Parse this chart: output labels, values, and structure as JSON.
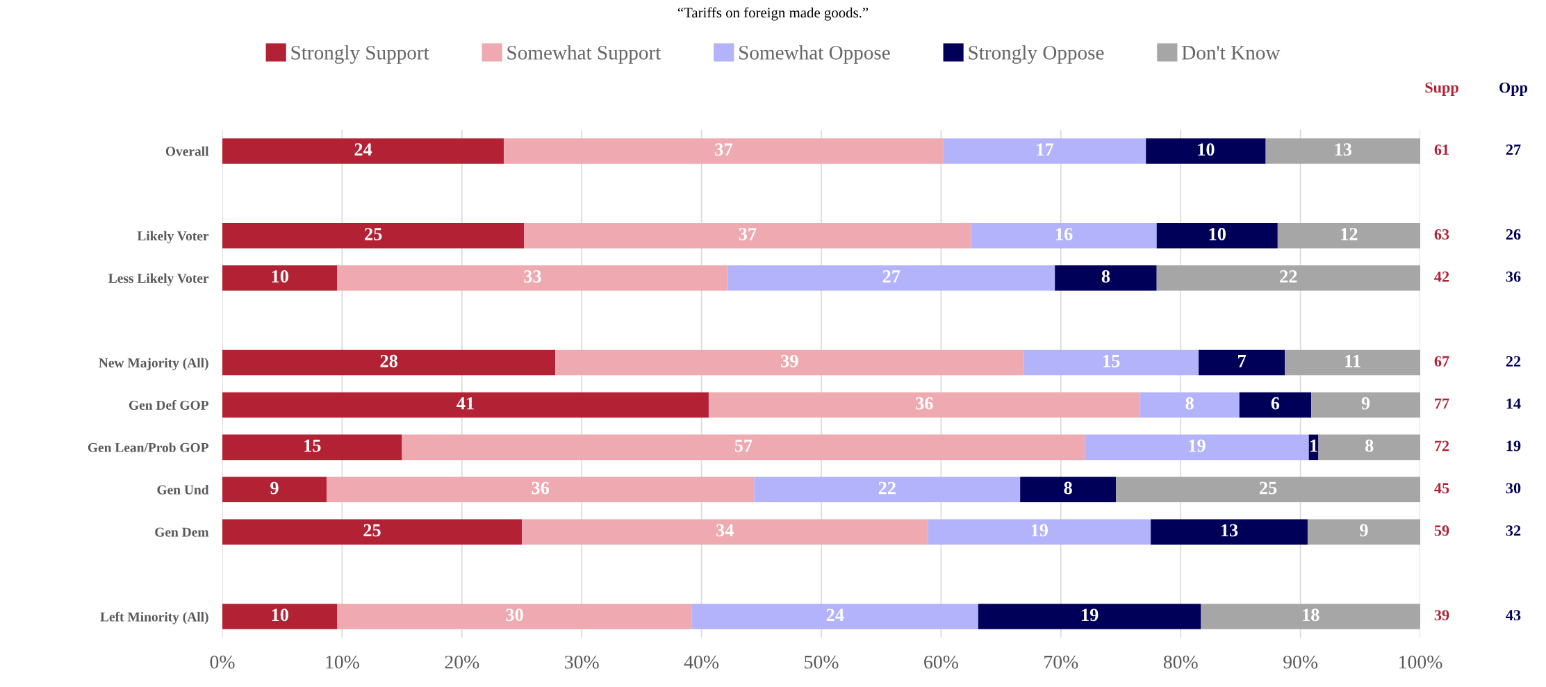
{
  "chart_data": {
    "type": "bar",
    "orientation": "horizontal",
    "stacked": true,
    "title": "“Tariffs on foreign made goods.”",
    "categories": [
      "Overall",
      null,
      "Likely Voter",
      "Less Likely Voter",
      null,
      "New Majority (All)",
      "Gen Def GOP",
      "Gen Lean/Prob GOP",
      "Gen Und",
      "Gen Dem",
      null,
      "Left Minority (All)"
    ],
    "series": [
      {
        "name": "Strongly Support",
        "color": "#b22234",
        "values": [
          23.5,
          null,
          25.2,
          9.6,
          null,
          27.8,
          40.6,
          15.0,
          8.7,
          25.0,
          null,
          9.6
        ],
        "value_labels": [
          "24",
          null,
          "25",
          "10",
          null,
          "28",
          "41",
          "15",
          "9",
          "25",
          null,
          "10"
        ]
      },
      {
        "name": "Somewhat Support",
        "color": "#eeaab0",
        "values": [
          36.7,
          null,
          37.3,
          32.6,
          null,
          39.1,
          36.0,
          57.0,
          35.7,
          33.9,
          null,
          29.6
        ],
        "value_labels": [
          "37",
          null,
          "37",
          "33",
          null,
          "39",
          "36",
          "57",
          "36",
          "34",
          null,
          "30"
        ]
      },
      {
        "name": "Somewhat Oppose",
        "color": "#b3b3fb",
        "values": [
          16.9,
          null,
          15.5,
          27.3,
          null,
          14.6,
          8.3,
          18.7,
          22.2,
          18.6,
          null,
          23.9
        ],
        "value_labels": [
          "17",
          null,
          "16",
          "27",
          null,
          "15",
          "8",
          "19",
          "22",
          "19",
          null,
          "24"
        ]
      },
      {
        "name": "Strongly Oppose",
        "color": "#000058",
        "values": [
          10.0,
          null,
          10.1,
          8.5,
          null,
          7.2,
          6.0,
          0.8,
          8.0,
          13.1,
          null,
          18.6
        ],
        "value_labels": [
          "10",
          null,
          "10",
          "8",
          null,
          "7",
          "6",
          "1",
          "8",
          "13",
          null,
          "19"
        ]
      },
      {
        "name": "Don't Know",
        "color": "#a6a6a6",
        "values": [
          12.9,
          null,
          11.9,
          22.0,
          null,
          11.3,
          9.1,
          8.5,
          25.4,
          9.4,
          null,
          18.3
        ],
        "value_labels": [
          "13",
          null,
          "12",
          "22",
          null,
          "11",
          "9",
          "8",
          "25",
          "9",
          null,
          "18"
        ]
      }
    ],
    "annotations": [
      "Supp",
      "Opp",
      "61",
      "27",
      "63",
      "26",
      "42",
      "36",
      "67",
      "22",
      "77",
      "14",
      "72",
      "19",
      "45",
      "30",
      "59",
      "32",
      "39",
      "43"
    ],
    "xlim": [
      0,
      100
    ],
    "xticks": [
      {
        "value": 0,
        "label": "0%"
      },
      {
        "value": 10,
        "label": "10%"
      },
      {
        "value": 20,
        "label": "20%"
      },
      {
        "value": 30,
        "label": "30%"
      },
      {
        "value": 40,
        "label": "40%"
      },
      {
        "value": 50,
        "label": "50%"
      },
      {
        "value": 60,
        "label": "60%"
      },
      {
        "value": 70,
        "label": "70%"
      },
      {
        "value": 80,
        "label": "80%"
      },
      {
        "value": 90,
        "label": "90%"
      },
      {
        "value": 100,
        "label": "100%"
      }
    ],
    "grid": "x",
    "legend": "top"
  }
}
